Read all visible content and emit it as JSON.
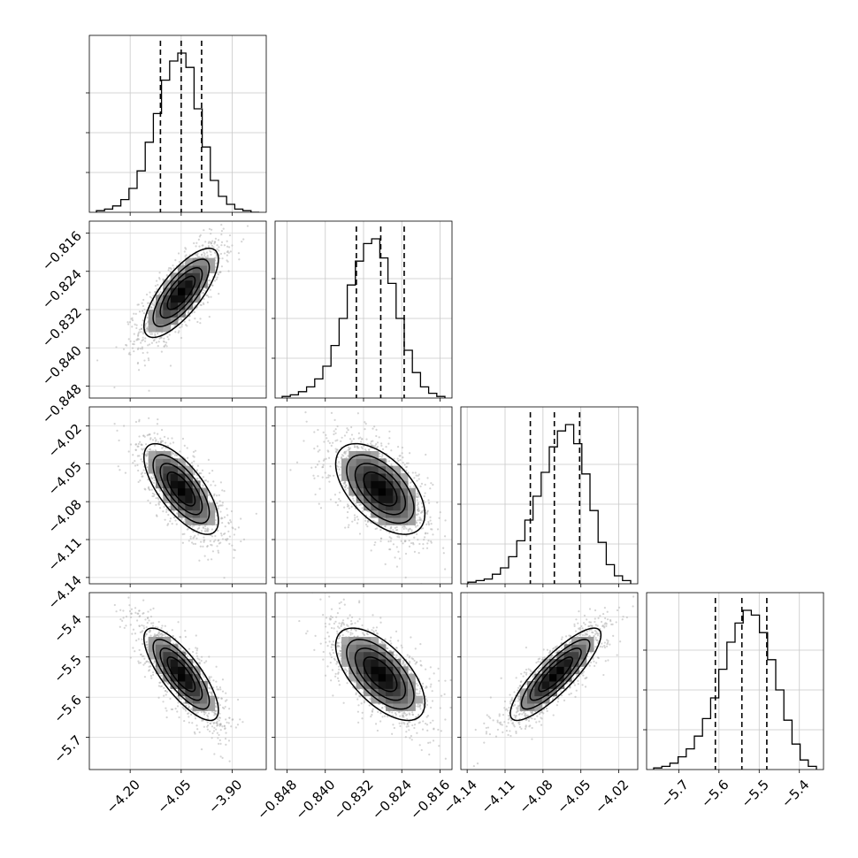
{
  "chart_data": {
    "type": "corner",
    "n_params": 4,
    "grid": true,
    "quantile_lines": "dashed",
    "params": [
      {
        "range": [
          -4.32,
          -3.8
        ],
        "ticks": [
          -4.2,
          -4.05,
          -3.9
        ],
        "tick_labels": [
          "−4.20",
          "−4.05",
          "−3.90"
        ],
        "quantiles": [
          -4.111,
          -4.05,
          -3.99
        ]
      },
      {
        "range": [
          -0.8505,
          -0.8135
        ],
        "ticks": [
          -0.848,
          -0.84,
          -0.832,
          -0.824,
          -0.816
        ],
        "tick_labels": [
          "−0.848",
          "−0.840",
          "−0.832",
          "−0.824",
          "−0.816"
        ],
        "quantiles": [
          -0.8335,
          -0.8284,
          -0.8235
        ]
      },
      {
        "range": [
          -4.145,
          -4.005
        ],
        "ticks": [
          -4.14,
          -4.11,
          -4.08,
          -4.05,
          -4.02
        ],
        "tick_labels": [
          "−4.14",
          "−4.11",
          "−4.08",
          "−4.05",
          "−4.02"
        ],
        "quantiles": [
          -4.09,
          -4.071,
          -4.051
        ]
      },
      {
        "range": [
          -5.78,
          -5.34
        ],
        "ticks": [
          -5.7,
          -5.6,
          -5.5,
          -5.4
        ],
        "tick_labels": [
          "−5.7",
          "−5.6",
          "−5.5",
          "−5.4"
        ],
        "quantiles": [
          -5.609,
          -5.543,
          -5.481
        ]
      }
    ],
    "histograms": [
      [
        0.01,
        0.02,
        0.04,
        0.08,
        0.15,
        0.26,
        0.44,
        0.62,
        0.83,
        0.95,
        1.0,
        0.91,
        0.65,
        0.41,
        0.2,
        0.1,
        0.05,
        0.02,
        0.01,
        0.0
      ],
      [
        0.01,
        0.02,
        0.04,
        0.07,
        0.12,
        0.2,
        0.33,
        0.5,
        0.71,
        0.86,
        0.97,
        1.0,
        0.88,
        0.72,
        0.5,
        0.3,
        0.16,
        0.07,
        0.03,
        0.01
      ],
      [
        0.01,
        0.02,
        0.03,
        0.06,
        0.1,
        0.17,
        0.27,
        0.4,
        0.55,
        0.7,
        0.86,
        0.96,
        1.0,
        0.88,
        0.69,
        0.46,
        0.26,
        0.12,
        0.05,
        0.02
      ],
      [
        0.01,
        0.02,
        0.04,
        0.08,
        0.13,
        0.21,
        0.32,
        0.45,
        0.63,
        0.8,
        0.92,
        1.0,
        0.97,
        0.86,
        0.69,
        0.5,
        0.31,
        0.16,
        0.06,
        0.02
      ]
    ],
    "pairs": [
      {
        "row": 1,
        "col": 0,
        "mean": [
          -4.05,
          -0.8285
        ],
        "std": [
          0.061,
          0.0052
        ],
        "rho": 0.75
      },
      {
        "row": 2,
        "col": 0,
        "mean": [
          -4.05,
          -4.07
        ],
        "std": [
          0.061,
          0.02
        ],
        "rho": -0.7
      },
      {
        "row": 2,
        "col": 1,
        "mean": [
          -0.8285,
          -4.07
        ],
        "std": [
          0.0052,
          0.02
        ],
        "rho": -0.55
      },
      {
        "row": 3,
        "col": 0,
        "mean": [
          -4.05,
          -5.543
        ],
        "std": [
          0.061,
          0.064
        ],
        "rho": -0.78
      },
      {
        "row": 3,
        "col": 1,
        "mean": [
          -0.8285,
          -5.543
        ],
        "std": [
          0.0052,
          0.064
        ],
        "rho": -0.62
      },
      {
        "row": 3,
        "col": 2,
        "mean": [
          -4.07,
          -5.543
        ],
        "std": [
          0.02,
          0.064
        ],
        "rho": 0.85
      }
    ]
  }
}
